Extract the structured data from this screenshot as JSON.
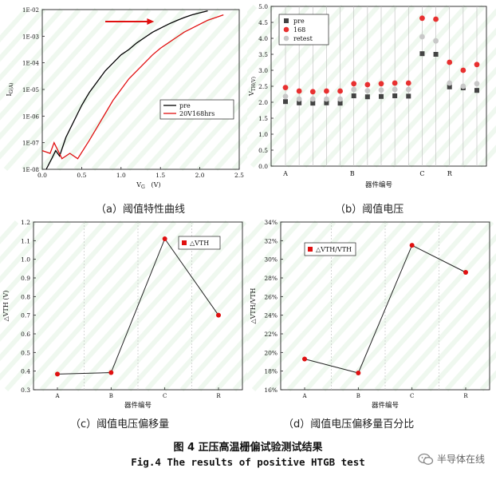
{
  "chart_data": [
    {
      "type": "line",
      "caption": "（a）阈值特性曲线",
      "xlabel": "V_G(V)",
      "ylabel": "I_G(A)",
      "yscale": "log",
      "xlim": [
        0.0,
        2.5
      ],
      "ylim_exp": [
        -8,
        -2
      ],
      "x_ticks": [
        "0.0",
        "0.5",
        "1.0",
        "1.5",
        "2.0",
        "2.5"
      ],
      "y_ticks": [
        "1E-08",
        "1E-07",
        "1E-06",
        "1E-05",
        "1E-04",
        "1E-03",
        "1E-02"
      ],
      "legend": "center-right",
      "series": [
        {
          "name": "pre",
          "color": "#000000",
          "x": [
            0.05,
            0.12,
            0.17,
            0.22,
            0.3,
            0.4,
            0.5,
            0.6,
            0.7,
            0.8,
            0.9,
            1.0,
            1.1,
            1.2,
            1.3,
            1.4,
            1.5,
            1.6,
            1.7,
            1.8,
            1.9,
            2.0,
            2.1
          ],
          "y": [
            -8,
            -7.6,
            -7.3,
            -7.5,
            -6.8,
            -6.2,
            -5.6,
            -5.1,
            -4.7,
            -4.3,
            -4.0,
            -3.7,
            -3.5,
            -3.25,
            -3.05,
            -2.85,
            -2.7,
            -2.55,
            -2.42,
            -2.3,
            -2.2,
            -2.12,
            -2.05
          ]
        },
        {
          "name": "20V168hrs",
          "color": "#e01010",
          "x": [
            0.0,
            0.1,
            0.15,
            0.25,
            0.35,
            0.45,
            0.6,
            0.7,
            0.8,
            0.9,
            1.0,
            1.1,
            1.2,
            1.3,
            1.4,
            1.5,
            1.6,
            1.7,
            1.8,
            1.9,
            2.0,
            2.1,
            2.2,
            2.3
          ],
          "y": [
            -7.3,
            -7.4,
            -7.0,
            -7.6,
            -7.4,
            -7.6,
            -6.9,
            -6.4,
            -5.9,
            -5.4,
            -5.0,
            -4.6,
            -4.3,
            -4.0,
            -3.7,
            -3.45,
            -3.25,
            -3.05,
            -2.85,
            -2.7,
            -2.55,
            -2.4,
            -2.3,
            -2.2
          ]
        }
      ],
      "annotation": "red right arrow"
    },
    {
      "type": "scatter",
      "caption": "（b）阈值电压",
      "xlabel": "器件编号",
      "ylabel": "V_TH(V)",
      "ylim": [
        0.0,
        5.0
      ],
      "y_ticks": [
        "0.0",
        "0.5",
        "1.0",
        "1.5",
        "2.0",
        "2.5",
        "3.0",
        "3.5",
        "4.0",
        "4.5",
        "5.0"
      ],
      "x_group_labels": [
        "A",
        "B",
        "C",
        "R"
      ],
      "legend": "top-left",
      "series": [
        {
          "name": "pre",
          "color": "#444444",
          "marker": "square",
          "values": [
            2.02,
            1.98,
            1.97,
            1.98,
            1.97,
            2.2,
            2.17,
            2.18,
            2.2,
            2.19,
            3.52,
            3.5,
            2.48,
            2.45,
            2.37
          ]
        },
        {
          "name": "168",
          "color": "#e83030",
          "marker": "circle",
          "values": [
            2.46,
            2.35,
            2.33,
            2.35,
            2.35,
            2.58,
            2.55,
            2.58,
            2.6,
            2.6,
            4.63,
            4.6,
            3.25,
            3.0,
            3.18
          ]
        },
        {
          "name": "retest",
          "color": "#c8c8c8",
          "marker": "circle",
          "values": [
            2.18,
            2.1,
            2.1,
            2.1,
            2.1,
            2.4,
            2.36,
            2.38,
            2.4,
            2.4,
            4.05,
            3.92,
            2.6,
            2.5,
            2.58
          ]
        }
      ]
    },
    {
      "type": "line",
      "caption": "（c）阈值电压偏移量",
      "xlabel": "器件编号",
      "ylabel": "△V_TH (V)",
      "ylim": [
        0.3,
        1.2
      ],
      "y_ticks": [
        "0.3",
        "0.4",
        "0.5",
        "0.6",
        "0.7",
        "0.8",
        "0.9",
        "1.0",
        "1.1",
        "1.2"
      ],
      "categories": [
        "A",
        "B",
        "C",
        "R"
      ],
      "legend": "top-right",
      "series": [
        {
          "name": "△V_TH",
          "color": "#e01010",
          "values": [
            0.384,
            0.392,
            1.11,
            0.7
          ]
        }
      ]
    },
    {
      "type": "line",
      "caption": "（d）阈值电压偏移量百分比",
      "xlabel": "器件编号",
      "ylabel": "△V_TH/V_TH",
      "ylim": [
        16,
        34
      ],
      "y_ticks": [
        "16%",
        "18%",
        "20%",
        "22%",
        "24%",
        "26%",
        "28%",
        "30%",
        "32%",
        "34%"
      ],
      "categories": [
        "A",
        "B",
        "C",
        "R"
      ],
      "legend": "top-left",
      "series": [
        {
          "name": "△V_TH/V_TH",
          "color": "#e01010",
          "values": [
            19.3,
            17.8,
            31.5,
            28.6
          ]
        }
      ]
    }
  ],
  "figure": {
    "title_cn": "图 4   正压高温栅偏试验测试结果",
    "title_en": "Fig.4 The results of positive HTGB test"
  },
  "watermark": {
    "text": "半导体在线",
    "icon": "wechat-icon"
  },
  "colors": {
    "black": "#000000",
    "red": "#e01010",
    "gray": "#c8c8c8",
    "darkgray": "#444444"
  }
}
